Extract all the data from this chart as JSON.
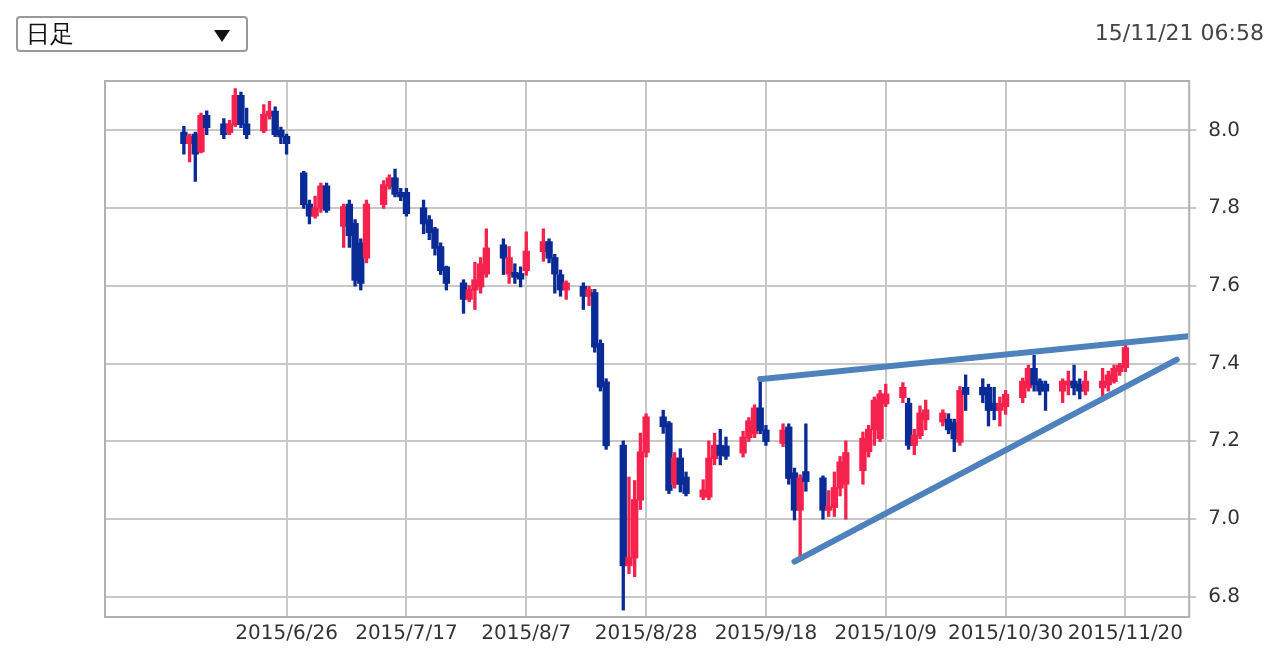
{
  "chart_data": {
    "type": "candlestick",
    "annotations": [
      "日足",
      "15/11/21 06:58"
    ],
    "x": [
      "2015-06-08",
      "2015-06-09",
      "2015-06-10",
      "2015-06-11",
      "2015-06-12",
      "2015-06-15",
      "2015-06-16",
      "2015-06-17",
      "2015-06-18",
      "2015-06-19",
      "2015-06-22",
      "2015-06-23",
      "2015-06-24",
      "2015-06-25",
      "2015-06-26",
      "2015-06-29",
      "2015-06-30",
      "2015-07-01",
      "2015-07-02",
      "2015-07-03",
      "2015-07-06",
      "2015-07-07",
      "2015-07-08",
      "2015-07-09",
      "2015-07-10",
      "2015-07-13",
      "2015-07-14",
      "2015-07-15",
      "2015-07-16",
      "2015-07-17",
      "2015-07-20",
      "2015-07-21",
      "2015-07-22",
      "2015-07-23",
      "2015-07-24",
      "2015-07-27",
      "2015-07-28",
      "2015-07-29",
      "2015-07-30",
      "2015-07-31",
      "2015-08-03",
      "2015-08-04",
      "2015-08-05",
      "2015-08-06",
      "2015-08-07",
      "2015-08-10",
      "2015-08-11",
      "2015-08-12",
      "2015-08-13",
      "2015-08-14",
      "2015-08-17",
      "2015-08-18",
      "2015-08-19",
      "2015-08-20",
      "2015-08-21",
      "2015-08-24",
      "2015-08-25",
      "2015-08-26",
      "2015-08-27",
      "2015-08-28",
      "2015-08-31",
      "2015-09-01",
      "2015-09-02",
      "2015-09-03",
      "2015-09-04",
      "2015-09-07",
      "2015-09-08",
      "2015-09-09",
      "2015-09-10",
      "2015-09-11",
      "2015-09-14",
      "2015-09-15",
      "2015-09-16",
      "2015-09-17",
      "2015-09-18",
      "2015-09-21",
      "2015-09-22",
      "2015-09-23",
      "2015-09-24",
      "2015-09-25",
      "2015-09-28",
      "2015-09-29",
      "2015-09-30",
      "2015-10-01",
      "2015-10-02",
      "2015-10-05",
      "2015-10-06",
      "2015-10-07",
      "2015-10-08",
      "2015-10-09",
      "2015-10-12",
      "2015-10-13",
      "2015-10-14",
      "2015-10-15",
      "2015-10-16",
      "2015-10-19",
      "2015-10-20",
      "2015-10-21",
      "2015-10-22",
      "2015-10-23",
      "2015-10-26",
      "2015-10-27",
      "2015-10-28",
      "2015-10-29",
      "2015-10-30",
      "2015-11-02",
      "2015-11-03",
      "2015-11-04",
      "2015-11-05",
      "2015-11-06",
      "2015-11-09",
      "2015-11-10",
      "2015-11-11",
      "2015-11-12",
      "2015-11-13",
      "2015-11-16",
      "2015-11-17",
      "2015-11-18",
      "2015-11-19",
      "2015-11-20"
    ],
    "ohlc": [
      [
        7.995,
        8.01,
        7.94,
        7.967
      ],
      [
        7.967,
        7.99,
        7.92,
        7.984
      ],
      [
        7.99,
        7.995,
        7.87,
        7.94
      ],
      [
        7.946,
        8.044,
        7.943,
        8.038
      ],
      [
        8.038,
        8.05,
        7.99,
        8.008
      ],
      [
        8.016,
        8.03,
        7.98,
        7.99
      ],
      [
        7.995,
        8.025,
        7.99,
        8.016
      ],
      [
        8.016,
        8.107,
        8.011,
        8.09
      ],
      [
        8.09,
        8.098,
        8.008,
        8.016
      ],
      [
        8.016,
        8.057,
        7.98,
        7.99
      ],
      [
        8.0,
        8.066,
        7.995,
        8.041
      ],
      [
        8.038,
        8.074,
        8.03,
        8.049
      ],
      [
        8.049,
        8.06,
        7.985,
        7.99
      ],
      [
        8.0,
        8.008,
        7.967,
        7.984
      ],
      [
        7.984,
        7.99,
        7.94,
        7.967
      ],
      [
        7.89,
        7.894,
        7.8,
        7.81
      ],
      [
        7.81,
        7.82,
        7.76,
        7.78
      ],
      [
        7.78,
        7.83,
        7.775,
        7.8
      ],
      [
        7.8,
        7.864,
        7.79,
        7.857
      ],
      [
        7.857,
        7.864,
        7.79,
        7.795
      ],
      [
        7.754,
        7.81,
        7.7,
        7.803
      ],
      [
        7.81,
        7.82,
        7.7,
        7.73
      ],
      [
        7.76,
        7.77,
        7.6,
        7.615
      ],
      [
        7.71,
        7.72,
        7.59,
        7.607
      ],
      [
        7.672,
        7.82,
        7.66,
        7.81
      ],
      [
        7.81,
        7.87,
        7.8,
        7.86
      ],
      [
        7.857,
        7.885,
        7.85,
        7.877
      ],
      [
        7.877,
        7.9,
        7.83,
        7.836
      ],
      [
        7.84,
        7.85,
        7.82,
        7.83
      ],
      [
        7.84,
        7.85,
        7.78,
        7.787
      ],
      [
        7.8,
        7.82,
        7.735,
        7.76
      ],
      [
        7.77,
        7.78,
        7.72,
        7.738
      ],
      [
        7.746,
        7.75,
        7.68,
        7.697
      ],
      [
        7.7,
        7.71,
        7.63,
        7.64
      ],
      [
        7.648,
        7.65,
        7.59,
        7.607
      ],
      [
        7.607,
        7.615,
        7.53,
        7.566
      ],
      [
        7.566,
        7.6,
        7.56,
        7.59
      ],
      [
        7.59,
        7.66,
        7.54,
        7.615
      ],
      [
        7.598,
        7.672,
        7.582,
        7.656
      ],
      [
        7.631,
        7.746,
        7.623,
        7.697
      ],
      [
        7.705,
        7.72,
        7.63,
        7.672
      ],
      [
        7.631,
        7.7,
        7.607,
        7.672
      ],
      [
        7.634,
        7.656,
        7.607,
        7.623
      ],
      [
        7.631,
        7.648,
        7.598,
        7.618
      ],
      [
        7.64,
        7.738,
        7.628,
        7.689
      ],
      [
        7.689,
        7.746,
        7.664,
        7.713
      ],
      [
        7.713,
        7.72,
        7.66,
        7.672
      ],
      [
        7.672,
        7.68,
        7.582,
        7.631
      ],
      [
        7.628,
        7.64,
        7.574,
        7.59
      ],
      [
        7.59,
        7.612,
        7.566,
        7.607
      ],
      [
        7.598,
        7.607,
        7.54,
        7.574
      ],
      [
        7.574,
        7.598,
        7.55,
        7.59
      ],
      [
        7.582,
        7.59,
        7.43,
        7.443
      ],
      [
        7.451,
        7.46,
        7.33,
        7.34
      ],
      [
        7.352,
        7.36,
        7.18,
        7.189
      ],
      [
        7.189,
        7.2,
        6.766,
        6.88
      ],
      [
        6.88,
        7.107,
        6.86,
        6.9
      ],
      [
        6.9,
        7.098,
        6.852,
        7.049
      ],
      [
        7.049,
        7.22,
        7.025,
        7.172
      ],
      [
        7.172,
        7.27,
        7.16,
        7.262
      ],
      [
        7.262,
        7.279,
        7.221,
        7.238
      ],
      [
        7.246,
        7.25,
        7.066,
        7.074
      ],
      [
        7.09,
        7.17,
        7.08,
        7.156
      ],
      [
        7.156,
        7.18,
        7.07,
        7.09
      ],
      [
        7.107,
        7.12,
        7.06,
        7.066
      ],
      [
        7.057,
        7.1,
        7.05,
        7.074
      ],
      [
        7.057,
        7.2,
        7.05,
        7.156
      ],
      [
        7.156,
        7.22,
        7.14,
        7.189
      ],
      [
        7.189,
        7.23,
        7.14,
        7.164
      ],
      [
        7.187,
        7.21,
        7.154,
        7.162
      ],
      [
        7.17,
        7.225,
        7.16,
        7.21
      ],
      [
        7.21,
        7.26,
        7.2,
        7.252
      ],
      [
        7.22,
        7.293,
        7.21,
        7.285
      ],
      [
        7.285,
        7.36,
        7.22,
        7.228
      ],
      [
        7.228,
        7.24,
        7.19,
        7.2
      ],
      [
        7.195,
        7.244,
        7.187,
        7.228
      ],
      [
        7.236,
        7.244,
        7.09,
        7.105
      ],
      [
        7.118,
        7.13,
        6.998,
        7.023
      ],
      [
        7.023,
        7.113,
        6.9,
        7.105
      ],
      [
        7.121,
        7.244,
        7.072,
        7.097
      ],
      [
        7.105,
        7.11,
        7.0,
        7.023
      ],
      [
        7.023,
        7.072,
        7.007,
        7.031
      ],
      [
        7.03,
        7.12,
        7.007,
        7.08
      ],
      [
        7.08,
        7.16,
        7.06,
        7.146
      ],
      [
        7.09,
        7.2,
        7.0,
        7.17
      ],
      [
        7.125,
        7.223,
        7.09,
        7.207
      ],
      [
        7.174,
        7.24,
        7.16,
        7.23
      ],
      [
        7.23,
        7.313,
        7.19,
        7.305
      ],
      [
        7.207,
        7.33,
        7.2,
        7.321
      ],
      [
        7.297,
        7.346,
        7.29,
        7.321
      ],
      [
        7.313,
        7.35,
        7.3,
        7.338
      ],
      [
        7.297,
        7.31,
        7.18,
        7.19
      ],
      [
        7.19,
        7.23,
        7.166,
        7.215
      ],
      [
        7.215,
        7.29,
        7.207,
        7.272
      ],
      [
        7.256,
        7.305,
        7.23,
        7.28
      ],
      [
        7.25,
        7.28,
        7.24,
        7.272
      ],
      [
        7.256,
        7.27,
        7.22,
        7.23
      ],
      [
        7.247,
        7.256,
        7.174,
        7.207
      ],
      [
        7.198,
        7.34,
        7.19,
        7.33
      ],
      [
        7.338,
        7.37,
        7.28,
        7.321
      ],
      [
        7.338,
        7.36,
        7.3,
        7.32
      ],
      [
        7.338,
        7.346,
        7.24,
        7.28
      ],
      [
        7.297,
        7.338,
        7.256,
        7.28
      ],
      [
        7.28,
        7.313,
        7.24,
        7.297
      ],
      [
        7.29,
        7.33,
        7.27,
        7.32
      ],
      [
        7.313,
        7.362,
        7.3,
        7.354
      ],
      [
        7.338,
        7.395,
        7.33,
        7.387
      ],
      [
        7.387,
        7.42,
        7.33,
        7.346
      ],
      [
        7.354,
        7.36,
        7.32,
        7.33
      ],
      [
        7.346,
        7.354,
        7.28,
        7.33
      ],
      [
        7.33,
        7.36,
        7.3,
        7.354
      ],
      [
        7.346,
        7.38,
        7.32,
        7.354
      ],
      [
        7.354,
        7.395,
        7.32,
        7.338
      ],
      [
        7.346,
        7.36,
        7.31,
        7.33
      ],
      [
        7.33,
        7.38,
        7.32,
        7.354
      ],
      [
        7.338,
        7.387,
        7.313,
        7.354
      ],
      [
        7.346,
        7.38,
        7.33,
        7.37
      ],
      [
        7.354,
        7.395,
        7.35,
        7.387
      ],
      [
        7.38,
        7.4,
        7.37,
        7.395
      ],
      [
        7.39,
        7.45,
        7.38,
        7.44
      ]
    ],
    "colors": [
      "#0a2a96",
      "#f5224d",
      "#0a2a96",
      "#f5224d",
      "#0a2a96",
      "#0a2a96",
      "#f5224d",
      "#f5224d",
      "#0a2a96",
      "#0a2a96",
      "#f5224d",
      "#f5224d",
      "#0a2a96",
      "#0a2a96",
      "#0a2a96",
      "#0a2a96",
      "#0a2a96",
      "#f5224d",
      "#f5224d",
      "#0a2a96",
      "#f5224d",
      "#0a2a96",
      "#0a2a96",
      "#0a2a96",
      "#f5224d",
      "#f5224d",
      "#f5224d",
      "#0a2a96",
      "#0a2a96",
      "#0a2a96",
      "#0a2a96",
      "#0a2a96",
      "#0a2a96",
      "#0a2a96",
      "#0a2a96",
      "#0a2a96",
      "#f5224d",
      "#f5224d",
      "#f5224d",
      "#f5224d",
      "#0a2a96",
      "#f5224d",
      "#0a2a96",
      "#0a2a96",
      "#f5224d",
      "#f5224d",
      "#0a2a96",
      "#0a2a96",
      "#0a2a96",
      "#f5224d",
      "#0a2a96",
      "#f5224d",
      "#0a2a96",
      "#0a2a96",
      "#0a2a96",
      "#0a2a96",
      "#f5224d",
      "#f5224d",
      "#f5224d",
      "#f5224d",
      "#0a2a96",
      "#0a2a96",
      "#f5224d",
      "#0a2a96",
      "#0a2a96",
      "#f5224d",
      "#f5224d",
      "#f5224d",
      "#0a2a96",
      "#0a2a96",
      "#f5224d",
      "#f5224d",
      "#f5224d",
      "#0a2a96",
      "#0a2a96",
      "#f5224d",
      "#0a2a96",
      "#0a2a96",
      "#f5224d",
      "#0a2a96",
      "#0a2a96",
      "#f5224d",
      "#f5224d",
      "#f5224d",
      "#f5224d",
      "#f5224d",
      "#f5224d",
      "#f5224d",
      "#f5224d",
      "#f5224d",
      "#f5224d",
      "#0a2a96",
      "#f5224d",
      "#f5224d",
      "#f5224d",
      "#f5224d",
      "#0a2a96",
      "#0a2a96",
      "#f5224d",
      "#0a2a96",
      "#0a2a96",
      "#0a2a96",
      "#0a2a96",
      "#f5224d",
      "#f5224d",
      "#f5224d",
      "#f5224d",
      "#0a2a96",
      "#0a2a96",
      "#0a2a96",
      "#f5224d",
      "#f5224d",
      "#0a2a96",
      "#0a2a96",
      "#f5224d",
      "#f5224d",
      "#f5224d",
      "#f5224d",
      "#f5224d",
      "#f5224d"
    ],
    "series": [
      {
        "type": "line",
        "color": "#4f81bd",
        "x": [
          "2015-09-17",
          "2015-12-01"
        ],
        "values": [
          7.36,
          7.47
        ]
      },
      {
        "type": "line",
        "color": "#4f81bd",
        "x": [
          "2015-09-23",
          "2015-11-29"
        ],
        "values": [
          6.89,
          7.41
        ]
      }
    ],
    "xlim": [
      "2015-05-25",
      "2015-12-01"
    ],
    "xticks": [
      {
        "value": "2015-06-26",
        "label": "2015/6/26"
      },
      {
        "value": "2015-07-17",
        "label": "2015/7/17"
      },
      {
        "value": "2015-08-07",
        "label": "2015/8/7"
      },
      {
        "value": "2015-08-28",
        "label": "2015/8/28"
      },
      {
        "value": "2015-09-18",
        "label": "2015/9/18"
      },
      {
        "value": "2015-10-09",
        "label": "2015/10/9"
      },
      {
        "value": "2015-10-30",
        "label": "2015/10/30"
      },
      {
        "value": "2015-11-20",
        "label": "2015/11/20"
      }
    ],
    "ylim": [
      6.75,
      8.13
    ],
    "yticks": [
      {
        "value": 6.8,
        "label": "6.8"
      },
      {
        "value": 7,
        "label": "7.0"
      },
      {
        "value": 7.2,
        "label": "7.2"
      },
      {
        "value": 7.4,
        "label": "7.4"
      },
      {
        "value": 7.6,
        "label": "7.6"
      },
      {
        "value": 7.8,
        "label": "7.8"
      },
      {
        "value": 8,
        "label": "8.0"
      }
    ],
    "grid": true
  }
}
